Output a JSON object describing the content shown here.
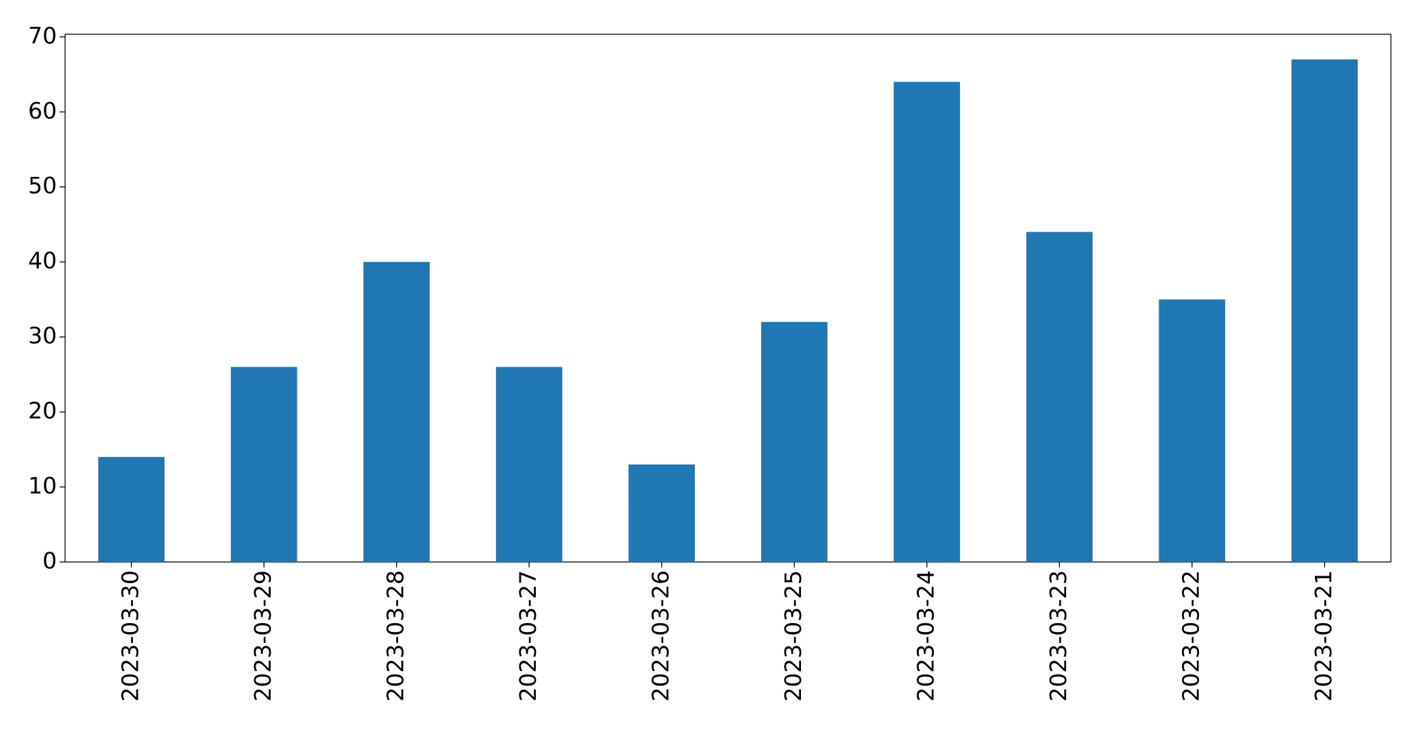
{
  "chart_data": {
    "type": "bar",
    "categories": [
      "2023-03-30",
      "2023-03-29",
      "2023-03-28",
      "2023-03-27",
      "2023-03-26",
      "2023-03-25",
      "2023-03-24",
      "2023-03-23",
      "2023-03-22",
      "2023-03-21"
    ],
    "values": [
      14,
      26,
      40,
      26,
      13,
      32,
      64,
      44,
      35,
      67
    ],
    "color": "#1f77b4",
    "ylim": [
      0,
      70.35
    ],
    "yticks": [
      0,
      10,
      20,
      30,
      40,
      50,
      60,
      70
    ],
    "grid": false
  }
}
